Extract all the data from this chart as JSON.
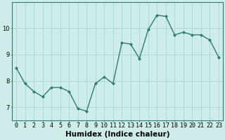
{
  "x": [
    0,
    1,
    2,
    3,
    4,
    5,
    6,
    7,
    8,
    9,
    10,
    11,
    12,
    13,
    14,
    15,
    16,
    17,
    18,
    19,
    20,
    21,
    22,
    23
  ],
  "y": [
    8.5,
    7.9,
    7.6,
    7.4,
    7.75,
    7.75,
    7.6,
    6.95,
    6.85,
    7.9,
    8.15,
    7.9,
    9.45,
    9.4,
    8.85,
    9.95,
    10.5,
    10.45,
    9.75,
    9.85,
    9.75,
    9.75,
    9.55,
    8.9
  ],
  "line_color": "#2d7d6e",
  "marker": "D",
  "marker_size": 2,
  "linewidth": 1.0,
  "bg_color": "#cdecea",
  "grid_color": "#b0d8d4",
  "xlabel": "Humidex (Indice chaleur)",
  "xlim": [
    -0.5,
    23.5
  ],
  "ylim": [
    6.5,
    11.0
  ],
  "yticks": [
    7,
    8,
    9,
    10
  ],
  "xlabel_fontsize": 7.5,
  "tick_fontsize": 6.0
}
